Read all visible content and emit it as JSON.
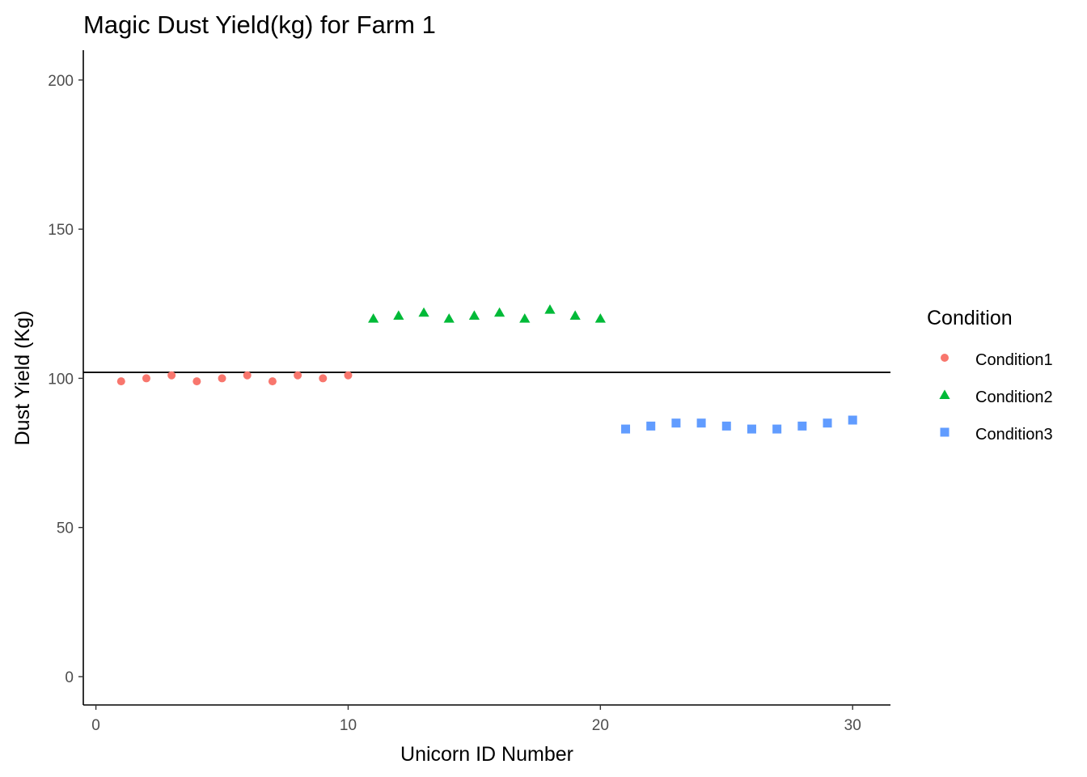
{
  "chart_data": {
    "type": "scatter",
    "title": "Magic Dust Yield(kg) for Farm 1",
    "xlabel": "Unicorn ID Number",
    "ylabel": "Dust Yield (Kg)",
    "xlim": [
      -0.5,
      31.5
    ],
    "ylim": [
      -9.5,
      210
    ],
    "x_ticks": [
      0,
      10,
      20,
      30
    ],
    "y_ticks": [
      0,
      50,
      100,
      150,
      200
    ],
    "grid": false,
    "legend": {
      "title": "Condition",
      "position": "right"
    },
    "hline": {
      "y": 102,
      "color": "#000000"
    },
    "series": [
      {
        "name": "Condition1",
        "shape": "circle",
        "color": "#F8766D",
        "x": [
          1,
          2,
          3,
          4,
          5,
          6,
          7,
          8,
          9,
          10
        ],
        "y": [
          99,
          100,
          101,
          99,
          100,
          101,
          99,
          101,
          100,
          101
        ]
      },
      {
        "name": "Condition2",
        "shape": "triangle",
        "color": "#00BA38",
        "x": [
          11,
          12,
          13,
          14,
          15,
          16,
          17,
          18,
          19,
          20
        ],
        "y": [
          120,
          121,
          122,
          120,
          121,
          122,
          120,
          123,
          121,
          120
        ]
      },
      {
        "name": "Condition3",
        "shape": "square",
        "color": "#619CFF",
        "x": [
          21,
          22,
          23,
          24,
          25,
          26,
          27,
          28,
          29,
          30
        ],
        "y": [
          83,
          84,
          85,
          85,
          84,
          83,
          83,
          84,
          85,
          86
        ]
      }
    ]
  }
}
